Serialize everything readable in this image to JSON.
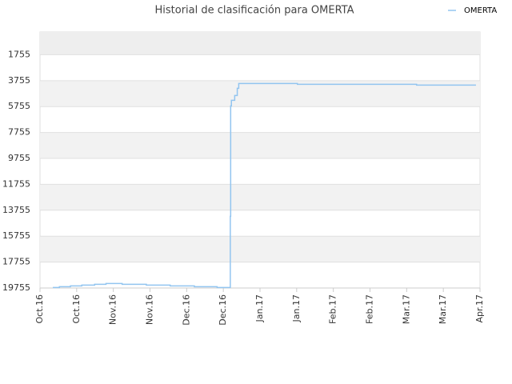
{
  "chart_data": {
    "type": "line",
    "title": "Historial de clasificación para OMERTA",
    "step": true,
    "grid": true,
    "legend": "top-right",
    "xlim": [
      0,
      12
    ],
    "xticks": [
      {
        "value": 0,
        "label": "Oct.16"
      },
      {
        "value": 1,
        "label": "Oct.16"
      },
      {
        "value": 2,
        "label": "Nov.16"
      },
      {
        "value": 3,
        "label": "Nov.16"
      },
      {
        "value": 4,
        "label": "Dec.16"
      },
      {
        "value": 5,
        "label": "Dec.16"
      },
      {
        "value": 6,
        "label": "Jan.17"
      },
      {
        "value": 7,
        "label": "Jan.17"
      },
      {
        "value": 8,
        "label": "Feb.17"
      },
      {
        "value": 9,
        "label": "Feb.17"
      },
      {
        "value": 10,
        "label": "Mar.17"
      },
      {
        "value": 11,
        "label": "Mar.17"
      },
      {
        "value": 12,
        "label": "Apr.17"
      }
    ],
    "ylim": [
      19755,
      0
    ],
    "yticks": [
      1755,
      3755,
      5755,
      7755,
      9755,
      11755,
      13755,
      15755,
      17755,
      19755
    ],
    "x": [
      0.35,
      0.53,
      0.83,
      1.14,
      1.49,
      1.8,
      2.24,
      2.9,
      3.55,
      4.21,
      4.83,
      5.18,
      5.19,
      5.2,
      5.22,
      5.31,
      5.38,
      5.42,
      7.02,
      10.27,
      11.89
    ],
    "series": [
      {
        "name": "OMERTA",
        "color": "#92c5f0",
        "values": [
          19718,
          19656,
          19594,
          19532,
          19470,
          19410,
          19470,
          19532,
          19594,
          19656,
          19718,
          19718,
          14224,
          5700,
          5273,
          4903,
          4348,
          3977,
          4039,
          4100,
          4100
        ]
      }
    ]
  }
}
